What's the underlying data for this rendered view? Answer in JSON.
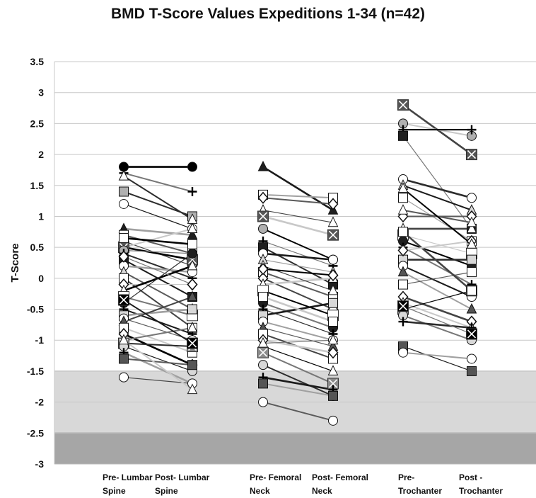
{
  "chart_data": {
    "type": "line",
    "title": "BMD T-Score Values Expeditions 1-34 (n=42)",
    "xlabel": "",
    "ylabel": "T-Score",
    "ylim": [
      -3,
      3.5
    ],
    "yticks": [
      "3.5",
      "3",
      "2.5",
      "2",
      "1.5",
      "1",
      "0.5",
      "0",
      "-0.5",
      "-1",
      "-1.5",
      "-2",
      "-2.5",
      "-3"
    ],
    "grid": true,
    "shaded_bands": [
      {
        "from": -2.5,
        "to": -1.5,
        "color": "#d8d8d8"
      },
      {
        "from": -3.0,
        "to": -2.5,
        "color": "#a6a6a6"
      }
    ],
    "categories": [
      [
        "Pre- Lumbar",
        "Spine"
      ],
      [
        "Post- Lumbar",
        "Spine"
      ],
      [
        "Pre- Femoral",
        "Neck"
      ],
      [
        "Post- Femoral",
        "Neck"
      ],
      [
        "Pre-",
        "Trochanter"
      ],
      [
        "Post -",
        "Trochanter"
      ]
    ],
    "pairs": [
      {
        "site": "Lumbar Spine",
        "points": [
          [
            1.8,
            1.8
          ],
          [
            1.7,
            1.4
          ],
          [
            1.4,
            1.0
          ],
          [
            1.2,
            0.8
          ],
          [
            0.8,
            0.7
          ],
          [
            0.7,
            0.4
          ],
          [
            0.6,
            0.2
          ],
          [
            0.5,
            0.8
          ],
          [
            0.5,
            0.3
          ],
          [
            0.45,
            0.4
          ],
          [
            0.4,
            0.0
          ],
          [
            0.3,
            -0.3
          ],
          [
            0.2,
            0.1
          ],
          [
            0.1,
            -0.5
          ],
          [
            0.0,
            -0.8
          ],
          [
            -0.1,
            -0.1
          ],
          [
            -0.2,
            0.2
          ],
          [
            -0.3,
            -0.6
          ],
          [
            -0.4,
            0.4
          ],
          [
            -0.5,
            -0.9
          ],
          [
            -0.6,
            -0.5
          ],
          [
            -0.65,
            -1.0
          ],
          [
            -0.7,
            -0.3
          ],
          [
            -0.8,
            -1.2
          ],
          [
            -0.9,
            -1.4
          ],
          [
            -1.0,
            -0.8
          ],
          [
            -1.05,
            -1.1
          ],
          [
            -1.1,
            -1.5
          ],
          [
            -1.2,
            -1.7
          ],
          [
            -1.3,
            -1.4
          ],
          [
            -1.6,
            -1.7
          ],
          [
            -1.0,
            -1.8
          ],
          [
            0.65,
            0.55
          ],
          [
            0.35,
            -0.1
          ],
          [
            1.65,
            0.95
          ],
          [
            -0.35,
            -1.05
          ]
        ]
      },
      {
        "site": "Femoral Neck",
        "points": [
          [
            1.8,
            1.1
          ],
          [
            1.35,
            1.3
          ],
          [
            1.3,
            1.2
          ],
          [
            1.1,
            0.9
          ],
          [
            1.0,
            0.7
          ],
          [
            0.8,
            0.3
          ],
          [
            0.6,
            0.2
          ],
          [
            0.5,
            -0.1
          ],
          [
            0.4,
            0.3
          ],
          [
            0.3,
            0.1
          ],
          [
            0.1,
            -0.3
          ],
          [
            0.0,
            -0.5
          ],
          [
            -0.1,
            0.0
          ],
          [
            -0.2,
            -0.6
          ],
          [
            -0.4,
            -0.8
          ],
          [
            -0.5,
            -0.9
          ],
          [
            -0.6,
            -0.4
          ],
          [
            -0.7,
            -1.0
          ],
          [
            -0.8,
            -1.1
          ],
          [
            -0.9,
            -1.3
          ],
          [
            -1.0,
            -1.2
          ],
          [
            -1.1,
            -1.5
          ],
          [
            -1.2,
            -1.7
          ],
          [
            -1.4,
            -1.9
          ],
          [
            -1.6,
            -1.8
          ],
          [
            -1.7,
            -1.9
          ],
          [
            -2.0,
            -2.3
          ],
          [
            0.2,
            -0.2
          ],
          [
            -0.3,
            -0.7
          ],
          [
            0.15,
            0.05
          ],
          [
            -1.05,
            -1.0
          ]
        ]
      },
      {
        "site": "Trochanter",
        "points": [
          [
            2.8,
            2.0
          ],
          [
            2.5,
            2.3
          ],
          [
            2.4,
            2.4
          ],
          [
            2.3,
            0.8
          ],
          [
            1.6,
            1.3
          ],
          [
            1.5,
            1.1
          ],
          [
            1.3,
            0.6
          ],
          [
            1.0,
            1.0
          ],
          [
            0.8,
            0.8
          ],
          [
            0.7,
            0.4
          ],
          [
            0.6,
            0.2
          ],
          [
            0.5,
            -0.1
          ],
          [
            0.3,
            0.3
          ],
          [
            0.2,
            -0.3
          ],
          [
            0.1,
            -0.5
          ],
          [
            -0.1,
            0.1
          ],
          [
            -0.3,
            -0.7
          ],
          [
            -0.4,
            -0.8
          ],
          [
            -0.5,
            -0.2
          ],
          [
            -0.6,
            -1.0
          ],
          [
            -0.7,
            -0.8
          ],
          [
            -1.1,
            -1.5
          ],
          [
            -1.2,
            -1.3
          ],
          [
            1.1,
            0.9
          ],
          [
            0.75,
            -0.2
          ],
          [
            0.45,
            0.6
          ],
          [
            1.45,
            0.55
          ],
          [
            -0.45,
            -0.9
          ]
        ]
      }
    ]
  }
}
